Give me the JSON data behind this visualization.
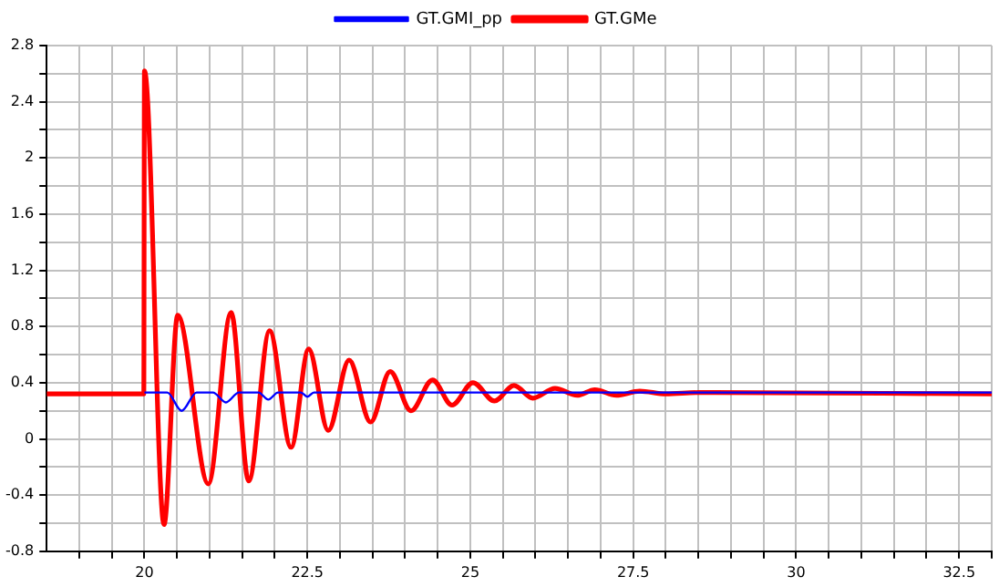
{
  "chart_data": {
    "type": "line",
    "legend": "top",
    "grid": true,
    "marker": "none",
    "line_style": "solid",
    "xlim": [
      18.5,
      33
    ],
    "ylim": [
      -0.8,
      2.8
    ],
    "xticks": [
      {
        "value": 19,
        "label": null
      },
      {
        "value": 19.5,
        "label": null
      },
      20,
      {
        "value": 20.5,
        "label": null
      },
      {
        "value": 21,
        "label": null
      },
      {
        "value": 21.5,
        "label": null
      },
      {
        "value": 22,
        "label": null
      },
      22.5,
      {
        "value": 23,
        "label": null
      },
      {
        "value": 23.5,
        "label": null
      },
      {
        "value": 24,
        "label": null
      },
      {
        "value": 24.5,
        "label": null
      },
      25,
      {
        "value": 25.5,
        "label": null
      },
      {
        "value": 26,
        "label": null
      },
      {
        "value": 26.5,
        "label": null
      },
      {
        "value": 27,
        "label": null
      },
      27.5,
      {
        "value": 28,
        "label": null
      },
      {
        "value": 28.5,
        "label": null
      },
      {
        "value": 29,
        "label": null
      },
      {
        "value": 29.5,
        "label": null
      },
      30,
      {
        "value": 30.5,
        "label": null
      },
      {
        "value": 31,
        "label": null
      },
      {
        "value": 31.5,
        "label": null
      },
      {
        "value": 32,
        "label": null
      },
      32.5,
      {
        "value": 33,
        "label": null
      }
    ],
    "yticks": [
      -0.8,
      {
        "value": -0.6,
        "label": null
      },
      -0.4,
      {
        "value": -0.2,
        "label": null
      },
      0,
      {
        "value": 0.2,
        "label": null
      },
      0.4,
      {
        "value": 0.6,
        "label": null
      },
      0.8,
      {
        "value": 1,
        "label": null
      },
      1.2,
      {
        "value": 1.4,
        "label": null
      },
      1.6,
      {
        "value": 1.8,
        "label": null
      },
      2,
      {
        "value": 2.2,
        "label": null
      },
      2.4,
      {
        "value": 2.6,
        "label": null
      },
      2.8
    ],
    "series": [
      {
        "name": "GT.GMI_pp",
        "color": "#0000ff",
        "x": [
          20,
          20.35,
          20.57,
          20.8,
          21.05,
          21.25,
          21.45,
          21.75,
          21.9,
          22.05,
          22.4,
          22.5,
          22.6,
          33
        ],
        "values": [
          0.33,
          0.33,
          0.2,
          0.33,
          0.33,
          0.26,
          0.33,
          0.33,
          0.28,
          0.33,
          0.33,
          0.3,
          0.33,
          0.33
        ]
      },
      {
        "name": "GT.GMe",
        "color": "#ff0000",
        "x": [
          18.5,
          19.99,
          20,
          20.05,
          20.3,
          20.51,
          20.98,
          21.33,
          21.6,
          21.92,
          22.25,
          22.52,
          22.82,
          23.14,
          23.47,
          23.77,
          24.09,
          24.42,
          24.72,
          25.04,
          25.37,
          25.67,
          25.96,
          26.3,
          26.64,
          26.91,
          27.24,
          27.6,
          28,
          28.5,
          33
        ],
        "values": [
          0.32,
          0.32,
          2.62,
          2.4,
          -0.61,
          0.88,
          -0.32,
          0.9,
          -0.3,
          0.77,
          -0.06,
          0.64,
          0.06,
          0.56,
          0.12,
          0.48,
          0.2,
          0.42,
          0.24,
          0.4,
          0.27,
          0.38,
          0.29,
          0.36,
          0.31,
          0.35,
          0.31,
          0.34,
          0.32,
          0.33,
          0.32
        ]
      }
    ]
  }
}
